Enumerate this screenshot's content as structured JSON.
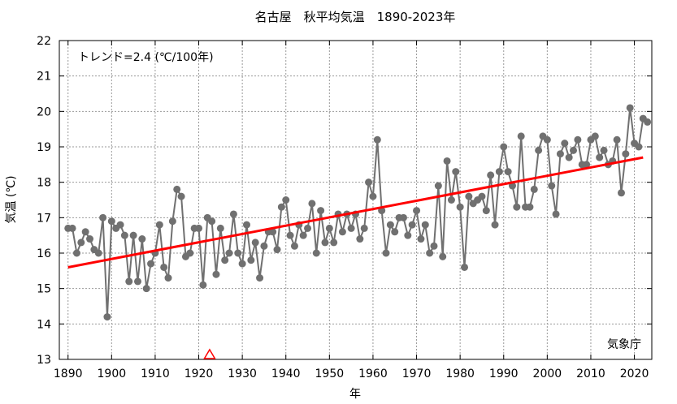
{
  "colors": {
    "series": "#707070",
    "trend": "#ff0000",
    "grid": "#9a9a9a",
    "marker": "#ff0000"
  },
  "chart_data": {
    "type": "line",
    "title": "名古屋　秋平均気温　1890-2023年",
    "xlabel": "年",
    "ylabel": "気温 (℃)",
    "annotation": "トレンド=2.4 (℃/100年)",
    "source_label": "気象庁",
    "xlim": [
      1888,
      2024
    ],
    "ylim": [
      13,
      22
    ],
    "x_ticks": [
      1890,
      1900,
      1910,
      1920,
      1930,
      1940,
      1950,
      1960,
      1970,
      1980,
      1990,
      2000,
      2010,
      2020
    ],
    "y_ticks": [
      13,
      14,
      15,
      16,
      17,
      18,
      19,
      20,
      21,
      22
    ],
    "grid": true,
    "x": [
      1890,
      1891,
      1892,
      1893,
      1894,
      1895,
      1896,
      1897,
      1898,
      1899,
      1900,
      1901,
      1902,
      1903,
      1904,
      1905,
      1906,
      1907,
      1908,
      1909,
      1910,
      1911,
      1912,
      1913,
      1914,
      1915,
      1916,
      1917,
      1918,
      1919,
      1920,
      1921,
      1922,
      1923,
      1924,
      1925,
      1926,
      1927,
      1928,
      1929,
      1930,
      1931,
      1932,
      1933,
      1934,
      1935,
      1936,
      1937,
      1938,
      1939,
      1940,
      1941,
      1942,
      1943,
      1944,
      1945,
      1946,
      1947,
      1948,
      1949,
      1950,
      1951,
      1952,
      1953,
      1954,
      1955,
      1956,
      1957,
      1958,
      1959,
      1960,
      1961,
      1962,
      1963,
      1964,
      1965,
      1966,
      1967,
      1968,
      1969,
      1970,
      1971,
      1972,
      1973,
      1974,
      1975,
      1976,
      1977,
      1978,
      1979,
      1980,
      1981,
      1982,
      1983,
      1984,
      1985,
      1986,
      1987,
      1988,
      1989,
      1990,
      1991,
      1992,
      1993,
      1994,
      1995,
      1996,
      1997,
      1998,
      1999,
      2000,
      2001,
      2002,
      2003,
      2004,
      2005,
      2006,
      2007,
      2008,
      2009,
      2010,
      2011,
      2012,
      2013,
      2014,
      2015,
      2016,
      2017,
      2018,
      2019,
      2020,
      2021,
      2022,
      2023
    ],
    "series": [
      {
        "values": [
          16.7,
          16.7,
          16.0,
          16.3,
          16.6,
          16.4,
          16.1,
          16.0,
          17.0,
          14.2,
          16.9,
          16.7,
          16.8,
          16.5,
          15.2,
          16.5,
          15.2,
          16.4,
          15.0,
          15.7,
          16.0,
          16.8,
          15.6,
          15.3,
          16.9,
          17.8,
          17.6,
          15.9,
          16.0,
          16.7,
          16.7,
          15.1,
          17.0,
          16.9,
          15.4,
          16.7,
          15.8,
          16.0,
          17.1,
          16.0,
          15.7,
          16.8,
          15.8,
          16.3,
          15.3,
          16.2,
          16.6,
          16.6,
          16.1,
          17.3,
          17.5,
          16.5,
          16.2,
          16.8,
          16.5,
          16.7,
          17.4,
          16.0,
          17.2,
          16.3,
          16.7,
          16.3,
          17.1,
          16.6,
          17.1,
          16.7,
          17.1,
          16.4,
          16.7,
          18.0,
          17.6,
          19.2,
          17.2,
          16.0,
          16.8,
          16.6,
          17.0,
          17.0,
          16.5,
          16.8,
          17.2,
          16.4,
          16.8,
          16.0,
          16.2,
          17.9,
          15.9,
          18.6,
          17.5,
          18.3,
          17.3,
          15.6,
          17.6,
          17.4,
          17.5,
          17.6,
          17.2,
          18.2,
          16.8,
          18.3,
          19.0,
          18.3,
          17.9,
          17.3,
          19.3,
          17.3,
          17.3,
          17.8,
          18.9,
          19.3,
          19.2,
          17.9,
          17.1,
          18.8,
          19.1,
          18.7,
          18.9,
          19.2,
          18.5,
          18.5,
          19.2,
          19.3,
          18.7,
          18.9,
          18.5,
          18.6,
          19.2,
          17.7,
          18.8,
          20.1,
          19.1,
          19.0,
          19.8,
          19.7
        ]
      },
      {
        "x": [
          1890,
          2022
        ],
        "values": [
          15.6,
          18.7
        ]
      }
    ],
    "markers": [
      {
        "x": 1922.5,
        "y": 13,
        "shape": "triangle"
      }
    ]
  }
}
